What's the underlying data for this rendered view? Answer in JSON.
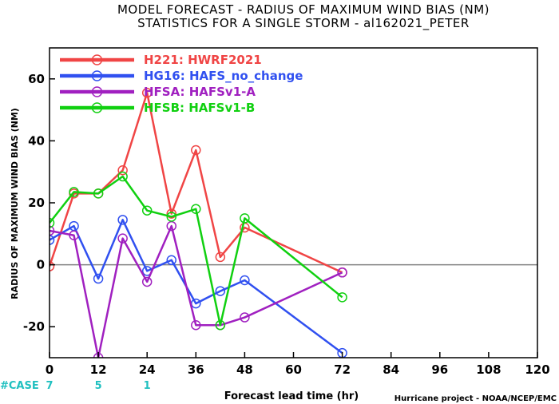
{
  "chart_data": {
    "type": "line",
    "title": "MODEL FORECAST - RADIUS OF MAXIMUM WIND BIAS (NM)",
    "subtitle": "STATISTICS FOR A SINGLE STORM - al162021_PETER",
    "xlabel": "Forecast lead time (hr)",
    "ylabel": "RADIUS OF MAXIMUM WIND BIAS (NM)",
    "credit": "Hurricane project - NOAA/NCEP/EMC",
    "xlim": [
      0,
      120
    ],
    "ylim": [
      -30,
      70
    ],
    "xticks": [
      0,
      12,
      24,
      36,
      48,
      60,
      72,
      84,
      96,
      108,
      120
    ],
    "yticks": [
      -20,
      0,
      20,
      40,
      60
    ],
    "zero_line": true,
    "legend_position": "top-left",
    "series": [
      {
        "name": "H221: HWRF2021",
        "color": "#f04545",
        "x": [
          0,
          6,
          12,
          18,
          24,
          30,
          36,
          42,
          48,
          72
        ],
        "y": [
          -0.5,
          23,
          23,
          30.5,
          55.5,
          16.5,
          37,
          2.5,
          12,
          -2.5
        ]
      },
      {
        "name": "HG16: HAFS_no_change",
        "color": "#3050f0",
        "x": [
          0,
          6,
          12,
          18,
          24,
          30,
          36,
          42,
          48,
          72
        ],
        "y": [
          8,
          12.5,
          -4.5,
          14.5,
          -2,
          1.5,
          -12.5,
          -8.5,
          -5,
          -28.5
        ]
      },
      {
        "name": "HFSA: HAFSv1-A",
        "color": "#a020c0",
        "x": [
          0,
          6,
          12,
          18,
          24,
          30,
          36,
          42,
          48,
          72
        ],
        "y": [
          11,
          9.5,
          -30,
          8.5,
          -5.5,
          12.5,
          -19.5,
          -19.5,
          -17,
          -2.5
        ]
      },
      {
        "name": "HFSB: HAFSv1-B",
        "color": "#10d010",
        "x": [
          0,
          6,
          12,
          18,
          24,
          30,
          36,
          42,
          48,
          72
        ],
        "y": [
          13.5,
          23.5,
          23,
          28.5,
          17.5,
          15.5,
          18,
          -19.5,
          15,
          -10.5
        ]
      }
    ],
    "case_label": "#CASE",
    "cases": [
      {
        "x": 0,
        "count": "7"
      },
      {
        "x": 12,
        "count": "5"
      },
      {
        "x": 24,
        "count": "1"
      }
    ],
    "colors": {
      "case": "#20c0c0",
      "zero_line": "#808080",
      "axis": "#000000"
    }
  }
}
